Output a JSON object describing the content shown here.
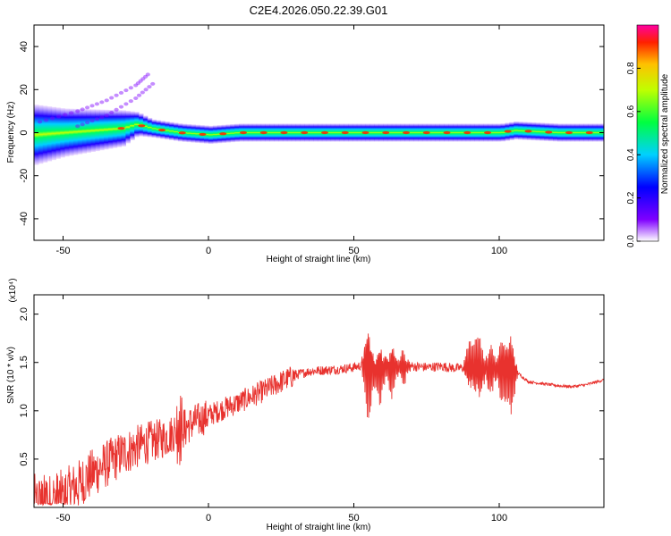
{
  "figure": {
    "title": "C2E4.2026.050.22.39.G01"
  },
  "chart_data": [
    {
      "type": "heatmap",
      "title": "C2E4.2026.050.22.39.G01",
      "xlabel": "Height of straight line (km)",
      "ylabel": "Frequency (Hz)",
      "xlim": [
        -60,
        136
      ],
      "ylim": [
        -50,
        50
      ],
      "xticks": [
        -50,
        0,
        50,
        100
      ],
      "xtick_labels": [
        "-50",
        "0",
        "50",
        "100"
      ],
      "yticks": [
        -40,
        -20,
        0,
        20,
        40
      ],
      "ytick_labels": [
        "-40",
        "-20",
        "0",
        "20",
        "40"
      ],
      "colorbar": {
        "label": "Normalized spectral amplitude",
        "range": [
          0,
          1
        ],
        "ticks": [
          0,
          0.2,
          0.4,
          0.6,
          0.8
        ],
        "tick_labels": [
          "0.0",
          "0.2",
          "0.4",
          "0.6",
          "0.8"
        ]
      },
      "band": {
        "description_values": "main energy band center frequency (Hz) and half-width (Hz) vs height (km)",
        "height_km": [
          -60,
          -50,
          -40,
          -30,
          -25,
          -20,
          -15,
          -10,
          0,
          10,
          20,
          40,
          60,
          80,
          100,
          105,
          120,
          136
        ],
        "center_hz": [
          -1,
          0,
          1,
          2,
          4,
          2,
          1,
          0,
          -1,
          0,
          0,
          0,
          0,
          0,
          0,
          1,
          0,
          0
        ],
        "half_width_hz": [
          10,
          8,
          7,
          6,
          4,
          3,
          3,
          3,
          3,
          3,
          3,
          3,
          3,
          3,
          3,
          3,
          3,
          3
        ]
      },
      "harmonics": [
        {
          "height_km": [
            -58,
            -45,
            -35,
            -25,
            -20
          ],
          "freq_hz": [
            5,
            10,
            15,
            22,
            28
          ]
        },
        {
          "height_km": [
            -45,
            -35,
            -25,
            -18
          ],
          "freq_hz": [
            3,
            8,
            16,
            24
          ]
        }
      ]
    },
    {
      "type": "line",
      "series": [
        {
          "name": "SNR",
          "color": "#e8322e",
          "x": [
            -60,
            -55,
            -50,
            -45,
            -40,
            -35,
            -30,
            -25,
            -20,
            -15,
            -10,
            -5,
            0,
            5,
            10,
            15,
            20,
            25,
            30,
            35,
            40,
            45,
            50,
            53,
            56,
            60,
            65,
            70,
            75,
            80,
            85,
            90,
            95,
            100,
            103,
            106,
            110,
            115,
            120,
            125,
            130,
            136
          ],
          "y": [
            0.05,
            0.06,
            0.12,
            0.22,
            0.35,
            0.45,
            0.55,
            0.62,
            0.68,
            0.72,
            0.8,
            0.88,
            0.95,
            1.02,
            1.08,
            1.15,
            1.22,
            1.3,
            1.37,
            1.41,
            1.42,
            1.43,
            1.45,
            1.47,
            1.44,
            1.43,
            1.45,
            1.46,
            1.45,
            1.46,
            1.44,
            1.45,
            1.43,
            1.44,
            1.43,
            1.4,
            1.3,
            1.28,
            1.26,
            1.25,
            1.27,
            1.32
          ]
        }
      ],
      "spikes": {
        "x": [
          -10,
          55,
          59,
          63,
          67,
          90,
          93,
          97,
          101,
          104
        ],
        "amplitude": [
          0.25,
          0.55,
          0.35,
          0.3,
          0.2,
          0.3,
          0.35,
          0.3,
          0.4,
          0.45
        ]
      },
      "xlabel": "Height of straight line (km)",
      "ylabel": "SNR (10 * v/v)",
      "y_multiplier": "(x10⁴)",
      "xlim": [
        -60,
        136
      ],
      "ylim": [
        0,
        2.2
      ],
      "xticks": [
        -50,
        0,
        50,
        100
      ],
      "xtick_labels": [
        "-50",
        "0",
        "50",
        "100"
      ],
      "yticks": [
        0.5,
        1.0,
        1.5,
        2.0
      ],
      "ytick_labels": [
        "0.5",
        "1.0",
        "1.5",
        "2.0"
      ]
    }
  ]
}
